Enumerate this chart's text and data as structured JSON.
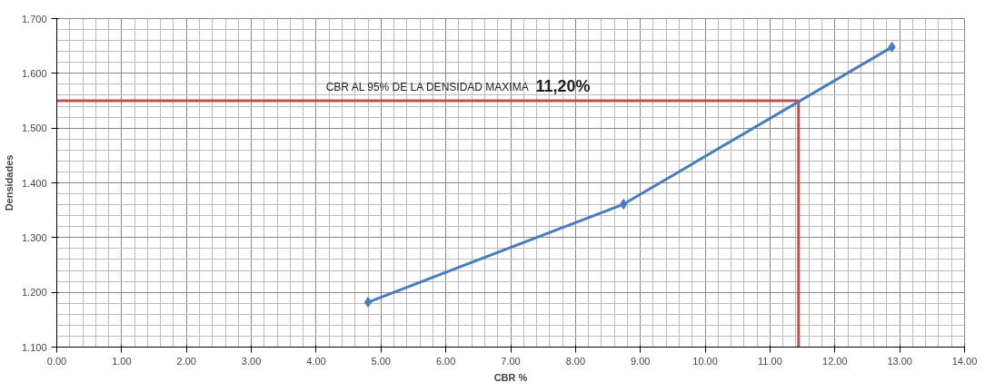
{
  "chart_data": {
    "type": "line",
    "xlabel": "CBR %",
    "ylabel": "Densidades",
    "x": [
      4.8,
      8.74,
      12.88
    ],
    "series": [
      {
        "color": "#4a7ebb",
        "values": [
          1.182,
          1.361,
          1.648
        ]
      }
    ],
    "marker": "diamond",
    "line_style": "solid",
    "grid": true,
    "xlim": [
      0,
      14
    ],
    "ylim": [
      1.1,
      1.7
    ],
    "xticks": [
      {
        "value": 0,
        "label": "0.00"
      },
      {
        "value": 1,
        "label": "1.00"
      },
      {
        "value": 2,
        "label": "2.00"
      },
      {
        "value": 3,
        "label": "3.00"
      },
      {
        "value": 4,
        "label": "4.00"
      },
      {
        "value": 5,
        "label": "5.00"
      },
      {
        "value": 6,
        "label": "6.00"
      },
      {
        "value": 7,
        "label": "7.00"
      },
      {
        "value": 8,
        "label": "8.00"
      },
      {
        "value": 9,
        "label": "9.00"
      },
      {
        "value": 10,
        "label": "10.00"
      },
      {
        "value": 11,
        "label": "11.00"
      },
      {
        "value": 12,
        "label": "12.00"
      },
      {
        "value": 13,
        "label": "13.00"
      },
      {
        "value": 14,
        "label": "14.00"
      }
    ],
    "yticks": [
      {
        "value": 1.1,
        "label": "1.100"
      },
      {
        "value": 1.2,
        "label": "1.200"
      },
      {
        "value": 1.3,
        "label": "1.300"
      },
      {
        "value": 1.4,
        "label": "1.400"
      },
      {
        "value": 1.5,
        "label": "1.500"
      },
      {
        "value": 1.6,
        "label": "1.600"
      },
      {
        "value": 1.7,
        "label": "1.700"
      }
    ],
    "ref_lines": [
      {
        "axis": "y",
        "value": 1.55,
        "color": "#c0504d"
      },
      {
        "axis": "x",
        "value": 11.44,
        "color": "#c0504d"
      }
    ],
    "annotations": [
      "CBR AL 95% DE LA DENSIDAD MAXIMA",
      "11,20%"
    ]
  }
}
